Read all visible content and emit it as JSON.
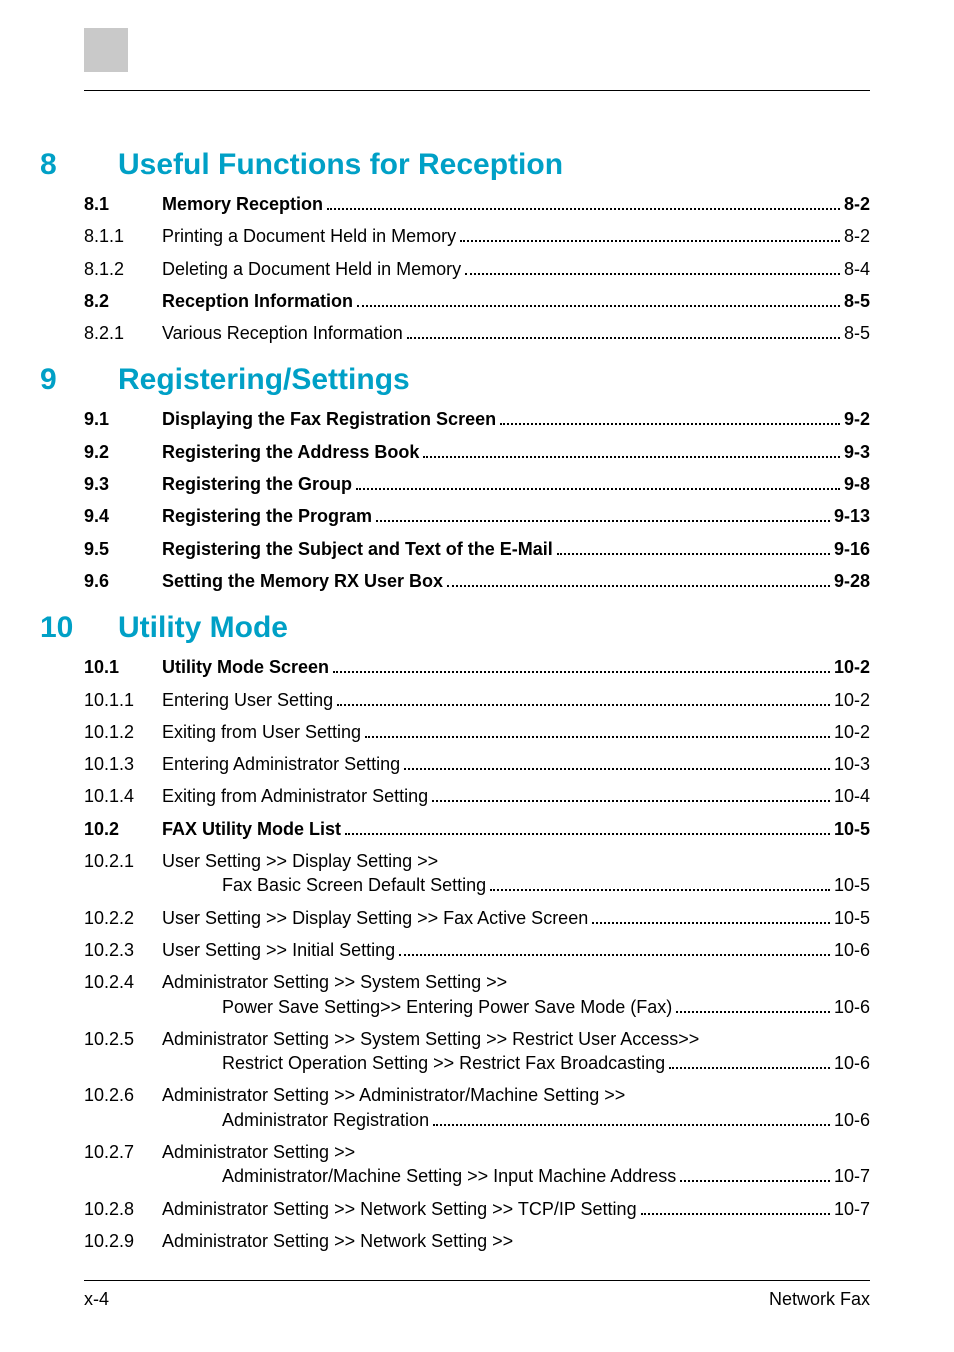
{
  "colors": {
    "heading": "#00a0c6",
    "text": "#000000",
    "block": "#c9c9c9",
    "background": "#ffffff"
  },
  "typography": {
    "chapter_fontsize": 30,
    "body_fontsize": 18,
    "font_family": "Arial, Helvetica, sans-serif"
  },
  "chapters": {
    "ch8": {
      "num": "8",
      "title": "Useful Functions for Reception"
    },
    "ch9": {
      "num": "9",
      "title": "Registering/Settings"
    },
    "ch10": {
      "num": "10",
      "title": "Utility Mode"
    }
  },
  "toc": {
    "l_8_1": {
      "num": "8.1",
      "text": "Memory Reception",
      "page": "8-2",
      "bold": true
    },
    "l_8_1_1": {
      "num": "8.1.1",
      "text": "Printing a Document Held in Memory",
      "page": "8-2"
    },
    "l_8_1_2": {
      "num": "8.1.2",
      "text": "Deleting a Document Held in Memory",
      "page": "8-4"
    },
    "l_8_2": {
      "num": "8.2",
      "text": "Reception Information",
      "page": "8-5",
      "bold": true
    },
    "l_8_2_1": {
      "num": "8.2.1",
      "text": "Various Reception Information",
      "page": "8-5"
    },
    "l_9_1": {
      "num": "9.1",
      "text": "Displaying the Fax Registration Screen",
      "page": "9-2",
      "bold": true
    },
    "l_9_2": {
      "num": "9.2",
      "text": "Registering the Address Book",
      "page": "9-3",
      "bold": true
    },
    "l_9_3": {
      "num": "9.3",
      "text": "Registering the Group",
      "page": "9-8",
      "bold": true
    },
    "l_9_4": {
      "num": "9.4",
      "text": "Registering the Program",
      "page": "9-13",
      "bold": true
    },
    "l_9_5": {
      "num": "9.5",
      "text": "Registering the Subject and Text of the E-Mail",
      "page": "9-16",
      "bold": true
    },
    "l_9_6": {
      "num": "9.6",
      "text": "Setting the Memory RX User Box",
      "page": "9-28",
      "bold": true
    },
    "l_10_1": {
      "num": "10.1",
      "text": "Utility Mode Screen",
      "page": "10-2",
      "bold": true
    },
    "l_10_1_1": {
      "num": "10.1.1",
      "text": "Entering User Setting",
      "page": "10-2"
    },
    "l_10_1_2": {
      "num": "10.1.2",
      "text": "Exiting from User Setting",
      "page": "10-2"
    },
    "l_10_1_3": {
      "num": "10.1.3",
      "text": "Entering Administrator Setting",
      "page": "10-3"
    },
    "l_10_1_4": {
      "num": "10.1.4",
      "text": "Exiting from Administrator Setting",
      "page": "10-4"
    },
    "l_10_2": {
      "num": "10.2",
      "text": "FAX Utility Mode List",
      "page": "10-5",
      "bold": true
    },
    "l_10_2_1": {
      "num": "10.2.1",
      "text1": "User Setting >> Display Setting >>",
      "text2": "Fax Basic Screen Default Setting",
      "page": "10-5"
    },
    "l_10_2_2": {
      "num": "10.2.2",
      "text": "User Setting >> Display Setting >> Fax Active Screen",
      "page": "10-5"
    },
    "l_10_2_3": {
      "num": "10.2.3",
      "text": "User Setting >> Initial Setting",
      "page": "10-6"
    },
    "l_10_2_4": {
      "num": "10.2.4",
      "text1": "Administrator Setting >> System Setting >>",
      "text2": "Power Save Setting>> Entering Power Save Mode (Fax)",
      "page": "10-6"
    },
    "l_10_2_5": {
      "num": "10.2.5",
      "text1": "Administrator Setting >> System Setting >> Restrict User Access>>",
      "text2": "Restrict Operation Setting >> Restrict Fax Broadcasting",
      "page": "10-6"
    },
    "l_10_2_6": {
      "num": "10.2.6",
      "text1": "Administrator Setting >> Administrator/Machine Setting >>",
      "text2": "Administrator Registration",
      "page": "10-6"
    },
    "l_10_2_7": {
      "num": "10.2.7",
      "text1": "Administrator Setting >>",
      "text2": "Administrator/Machine Setting >> Input Machine Address",
      "page": "10-7"
    },
    "l_10_2_8": {
      "num": "10.2.8",
      "text": "Administrator Setting >> Network Setting >> TCP/IP Setting",
      "page": "10-7"
    },
    "l_10_2_9": {
      "num": "10.2.9",
      "text": "Administrator Setting >> Network Setting >>"
    }
  },
  "footer": {
    "left": "x-4",
    "right": "Network Fax"
  }
}
